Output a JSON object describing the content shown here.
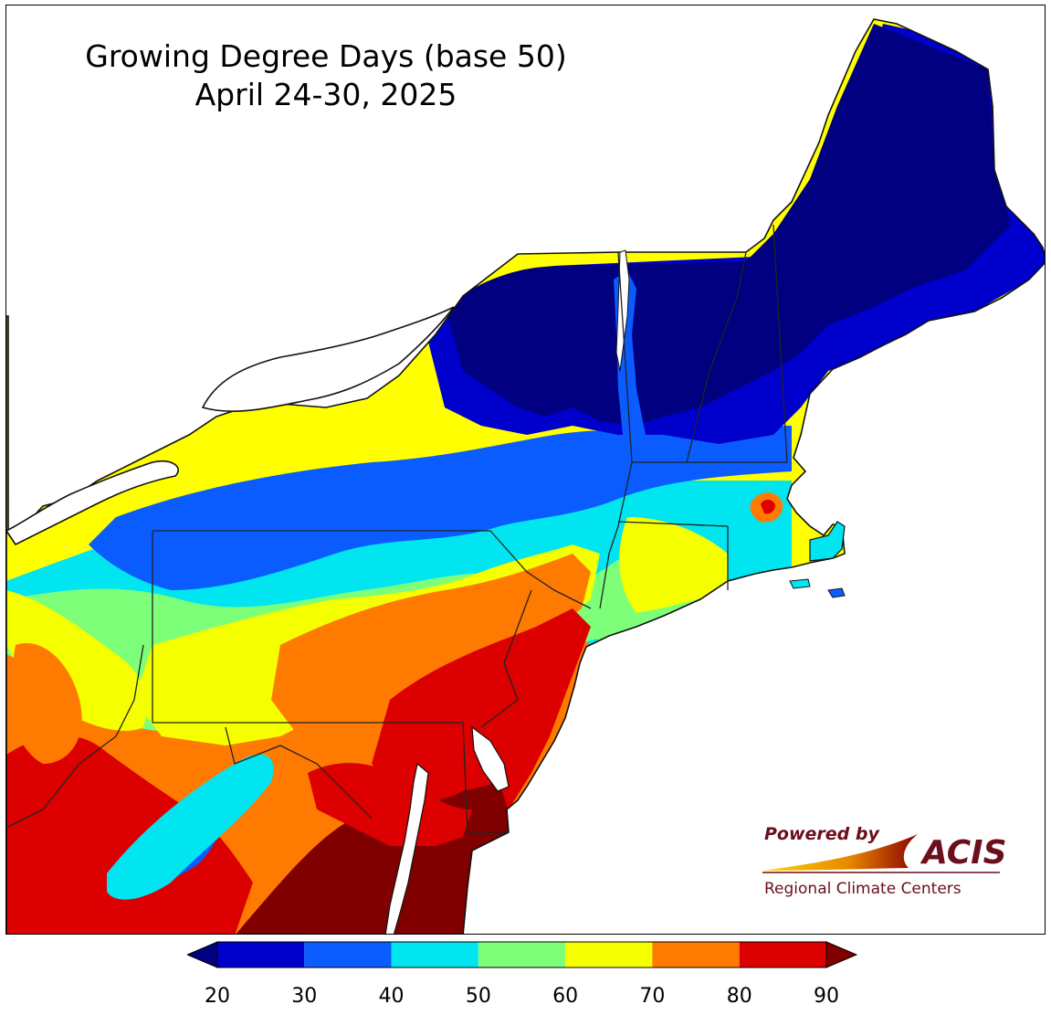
{
  "title": "Growing Degree Days (base 50)",
  "subtitle": "April 24-30, 2025",
  "logo": {
    "line1": "Powered by",
    "brand": "ACIS",
    "line2": "Regional Climate Centers",
    "brand_color": "#6b0f1a",
    "swoosh_colors": [
      "#ffd200",
      "#e88a00",
      "#8b0000"
    ]
  },
  "legend": {
    "ticks": [
      "20",
      "30",
      "40",
      "50",
      "60",
      "70",
      "80",
      "90"
    ],
    "bins": [
      {
        "from": 20,
        "to": 30,
        "color": "#0000cc"
      },
      {
        "from": 30,
        "to": 40,
        "color": "#0a5cff"
      },
      {
        "from": 40,
        "to": 50,
        "color": "#00e5f0"
      },
      {
        "from": 50,
        "to": 60,
        "color": "#7dff7a"
      },
      {
        "from": 60,
        "to": 70,
        "color": "#f5ff00"
      },
      {
        "from": 70,
        "to": 80,
        "color": "#ff7a00"
      },
      {
        "from": 80,
        "to": 90,
        "color": "#dd0000"
      }
    ],
    "under_color": "#000080",
    "over_color": "#800000"
  },
  "map_colors": {
    "lt20": "#000080",
    "c20": "#0000cc",
    "c30": "#0a5cff",
    "c40": "#00e5f0",
    "c50": "#7dff7a",
    "c60": "#f5ff00",
    "c70": "#ff7a00",
    "c80": "#dd0000",
    "gt90": "#800000",
    "water": "#ffffff",
    "borders": "#222222"
  }
}
